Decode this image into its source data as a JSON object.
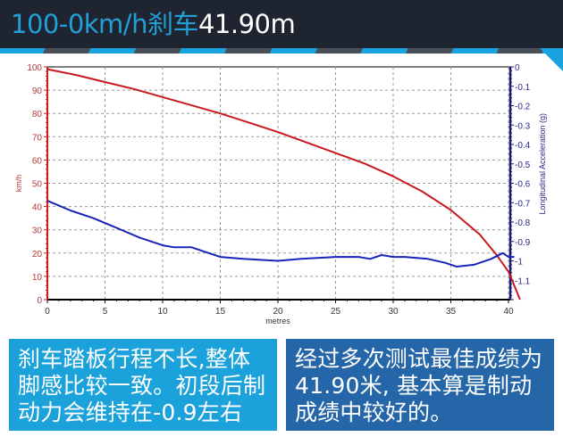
{
  "header": {
    "title_highlight": "100-0km/h刹车",
    "title_value": "41.90m"
  },
  "colors": {
    "header_bg": "#1f2530",
    "accent": "#1aa3df",
    "speed_series": "#c8191e",
    "accel_series": "#1a23b8",
    "box_left_bg": "#1ca2db",
    "box_right_bg": "#2466a8"
  },
  "chart_data": {
    "type": "line",
    "title": "100-0km/h刹车 41.90m",
    "xlabel": "metres",
    "ylabel": "km/h",
    "y2label": "Longitudinal Acceleration (g)",
    "xlim": [
      0,
      41
    ],
    "ylim": [
      0,
      100
    ],
    "y2lim": [
      -1.2,
      0
    ],
    "x_ticks": [
      0,
      5,
      10,
      15,
      20,
      25,
      30,
      35,
      40
    ],
    "y_ticks": [
      0,
      10,
      20,
      30,
      40,
      50,
      60,
      70,
      80,
      90,
      100
    ],
    "y2_ticks": [
      "0",
      "-0.1",
      "-0.2",
      "-0.3",
      "-0.4",
      "-0.5",
      "-0.6",
      "-0.7",
      "-0.8",
      "-0.9",
      "-1",
      "-1.1"
    ],
    "grid": true,
    "series": [
      {
        "name": "Speed (km/h)",
        "axis": "left",
        "color": "#c8191e",
        "x": [
          0,
          2.5,
          5,
          7.5,
          10,
          12.5,
          15,
          17.5,
          20,
          22.5,
          25,
          27.5,
          30,
          32.5,
          35,
          37.5,
          39,
          40,
          40.5,
          41
        ],
        "values": [
          99,
          96.5,
          93.5,
          90.5,
          87,
          83.5,
          80,
          76,
          72,
          67.5,
          63,
          58.5,
          53,
          46.5,
          38.5,
          28,
          19,
          12,
          6,
          0
        ]
      },
      {
        "name": "Longitudinal Acceleration (g)",
        "axis": "right",
        "color": "#1a23b8",
        "x": [
          0,
          2,
          4,
          6,
          8,
          10,
          11,
          12.5,
          14,
          15,
          17,
          20,
          22,
          25,
          27,
          28,
          29,
          30,
          31,
          33,
          34.5,
          35.5,
          37,
          38.5,
          39.5,
          40,
          40.5
        ],
        "values": [
          -0.69,
          -0.74,
          -0.78,
          -0.83,
          -0.88,
          -0.92,
          -0.93,
          -0.93,
          -0.96,
          -0.98,
          -0.99,
          -1.0,
          -0.99,
          -0.98,
          -0.98,
          -0.99,
          -0.97,
          -0.98,
          -0.98,
          -0.99,
          -1.01,
          -1.03,
          -1.02,
          -0.99,
          -0.96,
          -0.98,
          -0.98
        ]
      }
    ]
  },
  "notes": {
    "left": "刹车踏板行程不长,整体脚感比较一致。初段后制动力会维持在-0.9左右",
    "right": "经过多次测试最佳成绩为41.90米, 基本算是制动成绩中较好的。"
  }
}
